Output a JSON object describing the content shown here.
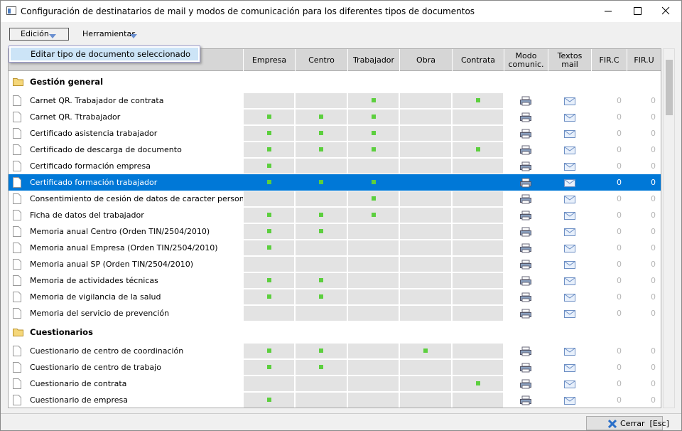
{
  "window": {
    "title": "Configuración de destinatarios de mail y modos de comunicación para los diferentes tipos de documentos"
  },
  "menu": {
    "items": [
      "Edición",
      "Herramientas"
    ],
    "dropdown": "Editar tipo de documento seleccionado"
  },
  "table": {
    "columns": [
      "Empresa",
      "Centro",
      "Trabajador",
      "Obra",
      "Contrata",
      "Modo comunic.",
      "Textos mail",
      "FIR.C",
      "FIR.U"
    ],
    "selected": [
      0,
      5
    ],
    "groups": [
      {
        "name": "Gestión general",
        "rows": [
          {
            "label": "Carnet QR. Trabajador de contrata",
            "checks": [
              0,
              0,
              1,
              0,
              1
            ],
            "fir_c": 0,
            "fir_u": 0
          },
          {
            "label": "Carnet QR. Ttrabajador",
            "checks": [
              1,
              1,
              1,
              0,
              0
            ],
            "fir_c": 0,
            "fir_u": 0
          },
          {
            "label": "Certificado asistencia trabajador",
            "checks": [
              1,
              1,
              1,
              0,
              0
            ],
            "fir_c": 0,
            "fir_u": 0
          },
          {
            "label": "Certificado de descarga de documento",
            "checks": [
              1,
              1,
              1,
              0,
              1
            ],
            "fir_c": 0,
            "fir_u": 0
          },
          {
            "label": "Certificado formación empresa",
            "checks": [
              1,
              0,
              0,
              0,
              0
            ],
            "fir_c": 0,
            "fir_u": 0
          },
          {
            "label": "Certificado formación trabajador",
            "checks": [
              1,
              1,
              1,
              0,
              0
            ],
            "fir_c": 0,
            "fir_u": 0
          },
          {
            "label": "Consentimiento de cesión de datos de caracter personal",
            "checks": [
              0,
              0,
              1,
              0,
              0
            ],
            "fir_c": 0,
            "fir_u": 0
          },
          {
            "label": "Ficha de datos del trabajador",
            "checks": [
              1,
              1,
              1,
              0,
              0
            ],
            "fir_c": 0,
            "fir_u": 0
          },
          {
            "label": "Memoria anual Centro (Orden TIN/2504/2010)",
            "checks": [
              1,
              1,
              0,
              0,
              0
            ],
            "fir_c": 0,
            "fir_u": 0
          },
          {
            "label": "Memoria anual Empresa (Orden TIN/2504/2010)",
            "checks": [
              1,
              0,
              0,
              0,
              0
            ],
            "fir_c": 0,
            "fir_u": 0
          },
          {
            "label": "Memoria anual SP (Orden TIN/2504/2010)",
            "checks": [
              0,
              0,
              0,
              0,
              0
            ],
            "fir_c": 0,
            "fir_u": 0
          },
          {
            "label": "Memoria de actividades técnicas",
            "checks": [
              1,
              1,
              0,
              0,
              0
            ],
            "fir_c": 0,
            "fir_u": 0
          },
          {
            "label": "Memoria de vigilancia de la salud",
            "checks": [
              1,
              1,
              0,
              0,
              0
            ],
            "fir_c": 0,
            "fir_u": 0
          },
          {
            "label": "Memoria del servicio de prevención",
            "checks": [
              0,
              0,
              0,
              0,
              0
            ],
            "fir_c": 0,
            "fir_u": 0
          }
        ]
      },
      {
        "name": "Cuestionarios",
        "rows": [
          {
            "label": "Cuestionario de centro de coordinación",
            "checks": [
              1,
              1,
              0,
              1,
              0
            ],
            "fir_c": 0,
            "fir_u": 0
          },
          {
            "label": "Cuestionario de centro de trabajo",
            "checks": [
              1,
              1,
              0,
              0,
              0
            ],
            "fir_c": 0,
            "fir_u": 0
          },
          {
            "label": "Cuestionario de contrata",
            "checks": [
              0,
              0,
              0,
              0,
              1
            ],
            "fir_c": 0,
            "fir_u": 0
          },
          {
            "label": "Cuestionario de empresa",
            "checks": [
              1,
              0,
              0,
              0,
              0
            ],
            "fir_c": 0,
            "fir_u": 0
          }
        ]
      }
    ]
  },
  "footer": {
    "button": "Cerrar  [Esc]"
  }
}
